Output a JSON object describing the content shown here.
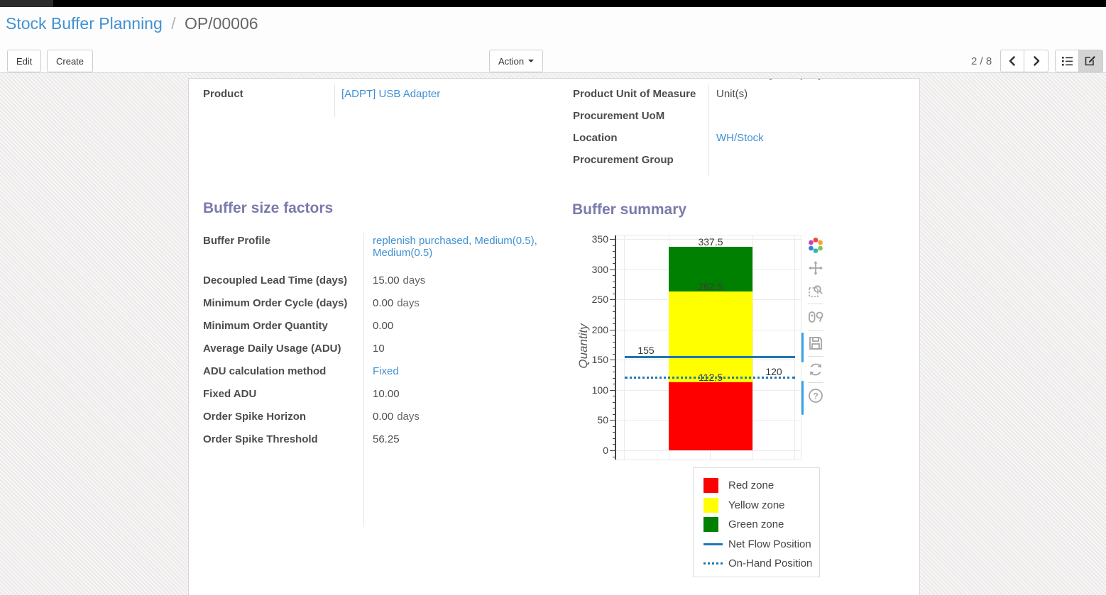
{
  "header": {
    "breadcrumb": {
      "parent": "Stock Buffer Planning",
      "separator": "/",
      "current": "OP/00006"
    },
    "buttons": {
      "edit": "Edit",
      "create": "Create",
      "action": "Action"
    },
    "pager": {
      "text": "2 / 8"
    },
    "view_switcher_icons": [
      "list-icon",
      "form-edit-icon"
    ]
  },
  "sheet": {
    "left_group": {
      "rows": [
        {
          "label": "Product",
          "value": "[ADPT] USB Adapter"
        }
      ]
    },
    "right_group": {
      "rows": [
        {
          "label": "Product Unit of Measure",
          "value": "Unit(s)"
        },
        {
          "label": "Procurement UoM",
          "value": ""
        },
        {
          "label": "Location",
          "value": "WH/Stock"
        },
        {
          "label": "Procurement Group",
          "value": ""
        }
      ]
    },
    "buffer_factors": {
      "heading": "Buffer size factors",
      "rows": [
        {
          "label": "Buffer Profile",
          "value": "replenish purchased, Medium(0.5), Medium(0.5)"
        },
        {
          "label": "Decoupled Lead Time (days)",
          "value": "15.00",
          "suffix": "days"
        },
        {
          "label": "Minimum Order Cycle (days)",
          "value": "0.00",
          "suffix": "days"
        },
        {
          "label": "Minimum Order Quantity",
          "value": "0.00"
        },
        {
          "label": "Average Daily Usage (ADU)",
          "value": "10"
        },
        {
          "label": "ADU calculation method",
          "value": "Fixed"
        },
        {
          "label": "Fixed ADU",
          "value": "10.00"
        },
        {
          "label": "Order Spike Horizon",
          "value": "0.00",
          "suffix": "days"
        },
        {
          "label": "Order Spike Threshold",
          "value": "56.25"
        }
      ]
    },
    "buffer_summary": {
      "heading": "Buffer summary"
    }
  },
  "chart_data": {
    "type": "bar",
    "title": "Buffer summary",
    "ylabel": "Quantity",
    "ylim": [
      0,
      350
    ],
    "y_major_step": 50,
    "y_minor_step": 10,
    "grid": true,
    "bar": {
      "stack_total": 337.5,
      "zones": [
        {
          "name": "Red zone",
          "from": 0,
          "to": 112.5,
          "value": 112.5,
          "color": "#ff0000",
          "boundary_label": "112.5"
        },
        {
          "name": "Yellow zone",
          "from": 112.5,
          "to": 262.5,
          "value": 150,
          "color": "#ffff00",
          "boundary_label": "262.5"
        },
        {
          "name": "Green zone",
          "from": 262.5,
          "to": 337.5,
          "value": 75,
          "color": "#008000",
          "boundary_label": "337.5"
        }
      ]
    },
    "lines": [
      {
        "name": "Net Flow Position",
        "value": 155,
        "label": "155",
        "style": "solid",
        "color": "#1f77b4"
      },
      {
        "name": "On-Hand Position",
        "value": 120,
        "label": "120",
        "style": "dotted",
        "color": "#1f77b4"
      }
    ],
    "legend": {
      "position": "bottom-right",
      "items": [
        {
          "label": "Red zone",
          "type": "swatch",
          "color": "#ff0000"
        },
        {
          "label": "Yellow zone",
          "type": "swatch",
          "color": "#ffff00"
        },
        {
          "label": "Green zone",
          "type": "swatch",
          "color": "#008000"
        },
        {
          "label": "Net Flow Position",
          "type": "line",
          "color": "#1f77b4"
        },
        {
          "label": "On-Hand Position",
          "type": "dots",
          "color": "#1f77b4"
        }
      ]
    },
    "modebar_icons": [
      "plotly-logo-icon",
      "pan-icon",
      "box-zoom-icon",
      "hover-compare-icon",
      "download-icon",
      "reset-axes-icon",
      "help-icon"
    ]
  }
}
